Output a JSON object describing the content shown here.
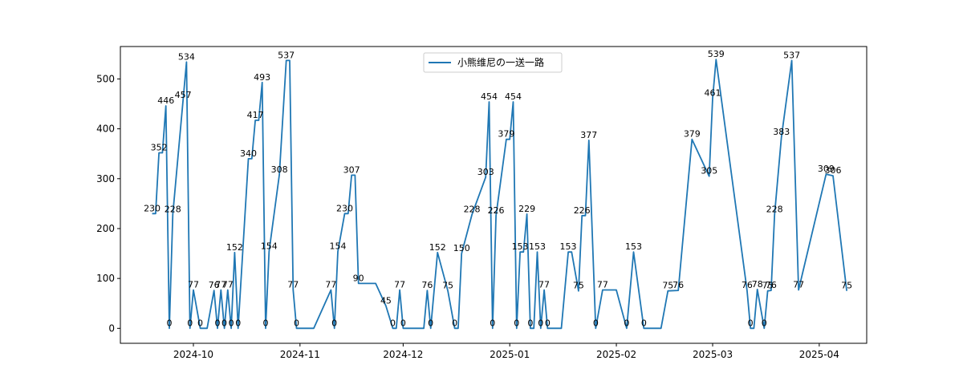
{
  "chart_data": {
    "type": "line",
    "legend": {
      "placement": "top-center"
    },
    "grid": false,
    "xlim": [
      "2024-09-10",
      "2025-04-05"
    ],
    "ylim": [
      -30,
      565
    ],
    "x_ticks": [
      "2024-10-01",
      "2024-11-01",
      "2024-12-01",
      "2025-01-01",
      "2025-02-01",
      "2025-03-01",
      "2025-04-01"
    ],
    "x_tick_labels": [
      "2024-10",
      "2024-11",
      "2024-12",
      "2025-01",
      "2025-02",
      "2025-03",
      "2025-04"
    ],
    "y_ticks": [
      0,
      100,
      200,
      300,
      400,
      500
    ],
    "series": [
      {
        "name": "小熊维尼の一送一路",
        "color": "#1f77b4",
        "points": [
          {
            "x": "2024-09-19",
            "y": 230,
            "label": "230"
          },
          {
            "x": "2024-09-20",
            "y": 230
          },
          {
            "x": "2024-09-21",
            "y": 352,
            "label": "352"
          },
          {
            "x": "2024-09-22",
            "y": 352
          },
          {
            "x": "2024-09-23",
            "y": 446,
            "label": "446"
          },
          {
            "x": "2024-09-24",
            "y": 0,
            "label": "0"
          },
          {
            "x": "2024-09-25",
            "y": 228,
            "label": "228"
          },
          {
            "x": "2024-09-28",
            "y": 457,
            "label": "457"
          },
          {
            "x": "2024-09-29",
            "y": 534,
            "label": "534"
          },
          {
            "x": "2024-09-30",
            "y": 0,
            "label": "0"
          },
          {
            "x": "2024-10-01",
            "y": 77,
            "label": "77"
          },
          {
            "x": "2024-10-03",
            "y": 0,
            "label": "0"
          },
          {
            "x": "2024-10-05",
            "y": 0
          },
          {
            "x": "2024-10-07",
            "y": 76,
            "label": "76"
          },
          {
            "x": "2024-10-08",
            "y": 0,
            "label": "0"
          },
          {
            "x": "2024-10-09",
            "y": 77,
            "label": "77"
          },
          {
            "x": "2024-10-10",
            "y": 0,
            "label": "0"
          },
          {
            "x": "2024-10-11",
            "y": 77,
            "label": "77"
          },
          {
            "x": "2024-10-12",
            "y": 0,
            "label": "0"
          },
          {
            "x": "2024-10-13",
            "y": 152,
            "label": "152"
          },
          {
            "x": "2024-10-14",
            "y": 0,
            "label": "0"
          },
          {
            "x": "2024-10-17",
            "y": 340,
            "label": "340"
          },
          {
            "x": "2024-10-18",
            "y": 340
          },
          {
            "x": "2024-10-19",
            "y": 417,
            "label": "417"
          },
          {
            "x": "2024-10-20",
            "y": 417
          },
          {
            "x": "2024-10-21",
            "y": 493,
            "label": "493"
          },
          {
            "x": "2024-10-22",
            "y": 0,
            "label": "0"
          },
          {
            "x": "2024-10-23",
            "y": 154,
            "label": "154"
          },
          {
            "x": "2024-10-26",
            "y": 308,
            "label": "308"
          },
          {
            "x": "2024-10-28",
            "y": 537,
            "label": "537"
          },
          {
            "x": "2024-10-29",
            "y": 537
          },
          {
            "x": "2024-10-30",
            "y": 77,
            "label": "77"
          },
          {
            "x": "2024-10-31",
            "y": 0,
            "label": "0"
          },
          {
            "x": "2024-11-03",
            "y": 0
          },
          {
            "x": "2024-11-05",
            "y": 0
          },
          {
            "x": "2024-11-10",
            "y": 77,
            "label": "77"
          },
          {
            "x": "2024-11-11",
            "y": 0,
            "label": "0"
          },
          {
            "x": "2024-11-12",
            "y": 154,
            "label": "154"
          },
          {
            "x": "2024-11-14",
            "y": 230,
            "label": "230"
          },
          {
            "x": "2024-11-15",
            "y": 230
          },
          {
            "x": "2024-11-16",
            "y": 307,
            "label": "307"
          },
          {
            "x": "2024-11-17",
            "y": 307
          },
          {
            "x": "2024-11-18",
            "y": 90,
            "label": "90"
          },
          {
            "x": "2024-11-23",
            "y": 90
          },
          {
            "x": "2024-11-26",
            "y": 45,
            "label": "45"
          },
          {
            "x": "2024-11-28",
            "y": 0,
            "label": "0"
          },
          {
            "x": "2024-11-29",
            "y": 0
          },
          {
            "x": "2024-11-30",
            "y": 77,
            "label": "77"
          },
          {
            "x": "2024-12-01",
            "y": 0,
            "label": "0"
          },
          {
            "x": "2024-12-07",
            "y": 0
          },
          {
            "x": "2024-12-08",
            "y": 76,
            "label": "76"
          },
          {
            "x": "2024-12-09",
            "y": 0,
            "label": "0"
          },
          {
            "x": "2024-12-11",
            "y": 152,
            "label": "152"
          },
          {
            "x": "2024-12-14",
            "y": 75,
            "label": "75"
          },
          {
            "x": "2024-12-16",
            "y": 0,
            "label": "0"
          },
          {
            "x": "2024-12-17",
            "y": 0
          },
          {
            "x": "2024-12-18",
            "y": 150,
            "label": "150"
          },
          {
            "x": "2024-12-21",
            "y": 228,
            "label": "228"
          },
          {
            "x": "2024-12-25",
            "y": 303,
            "label": "303"
          },
          {
            "x": "2024-12-26",
            "y": 454,
            "label": "454"
          },
          {
            "x": "2024-12-27",
            "y": 0,
            "label": "0"
          },
          {
            "x": "2024-12-28",
            "y": 226,
            "label": "226"
          },
          {
            "x": "2024-12-31",
            "y": 379,
            "label": "379"
          },
          {
            "x": "2025-01-01",
            "y": 379
          },
          {
            "x": "2025-01-02",
            "y": 454,
            "label": "454"
          },
          {
            "x": "2025-01-03",
            "y": 0,
            "label": "0"
          },
          {
            "x": "2025-01-04",
            "y": 153,
            "label": "153"
          },
          {
            "x": "2025-01-05",
            "y": 153
          },
          {
            "x": "2025-01-06",
            "y": 229,
            "label": "229"
          },
          {
            "x": "2025-01-07",
            "y": 0,
            "label": "0"
          },
          {
            "x": "2025-01-08",
            "y": 0
          },
          {
            "x": "2025-01-09",
            "y": 153,
            "label": "153"
          },
          {
            "x": "2025-01-10",
            "y": 0,
            "label": "0"
          },
          {
            "x": "2025-01-11",
            "y": 77,
            "label": "77"
          },
          {
            "x": "2025-01-12",
            "y": 0,
            "label": "0"
          },
          {
            "x": "2025-01-16",
            "y": 0
          },
          {
            "x": "2025-01-18",
            "y": 153,
            "label": "153"
          },
          {
            "x": "2025-01-19",
            "y": 153
          },
          {
            "x": "2025-01-21",
            "y": 75,
            "label": "75"
          },
          {
            "x": "2025-01-22",
            "y": 226,
            "label": "226"
          },
          {
            "x": "2025-01-23",
            "y": 226
          },
          {
            "x": "2025-01-24",
            "y": 377,
            "label": "377"
          },
          {
            "x": "2025-01-26",
            "y": 0,
            "label": "0"
          },
          {
            "x": "2025-01-28",
            "y": 77,
            "label": "77"
          },
          {
            "x": "2025-02-01",
            "y": 77
          },
          {
            "x": "2025-02-04",
            "y": 0,
            "label": "0"
          },
          {
            "x": "2025-02-06",
            "y": 153,
            "label": "153"
          },
          {
            "x": "2025-02-09",
            "y": 0,
            "label": "0"
          },
          {
            "x": "2025-02-14",
            "y": 0
          },
          {
            "x": "2025-02-16",
            "y": 75,
            "label": "75"
          },
          {
            "x": "2025-02-19",
            "y": 76,
            "label": "76"
          },
          {
            "x": "2025-02-23",
            "y": 379,
            "label": "379"
          },
          {
            "x": "2025-02-28",
            "y": 305,
            "label": "305"
          },
          {
            "x": "2025-03-01",
            "y": 461,
            "label": "461"
          },
          {
            "x": "2025-03-02",
            "y": 539,
            "label": "539"
          },
          {
            "x": "2025-03-11",
            "y": 76,
            "label": "76"
          },
          {
            "x": "2025-03-12",
            "y": 0,
            "label": "0"
          },
          {
            "x": "2025-03-13",
            "y": 0
          },
          {
            "x": "2025-03-14",
            "y": 78,
            "label": "78"
          },
          {
            "x": "2025-03-16",
            "y": 0,
            "label": "0"
          },
          {
            "x": "2025-03-17",
            "y": 75,
            "label": "75"
          },
          {
            "x": "2025-03-18",
            "y": 76,
            "label": "76"
          },
          {
            "x": "2025-03-19",
            "y": 228,
            "label": "228"
          },
          {
            "x": "2025-03-21",
            "y": 383,
            "label": "383"
          },
          {
            "x": "2025-03-24",
            "y": 537,
            "label": "537"
          },
          {
            "x": "2025-03-26",
            "y": 77,
            "label": "77"
          },
          {
            "x": "2025-04-03",
            "y": 309,
            "label": "309"
          },
          {
            "x": "2025-04-05",
            "y": 306,
            "label": "306"
          },
          {
            "x": "2025-04-09",
            "y": 75,
            "label": "75"
          }
        ]
      }
    ]
  }
}
